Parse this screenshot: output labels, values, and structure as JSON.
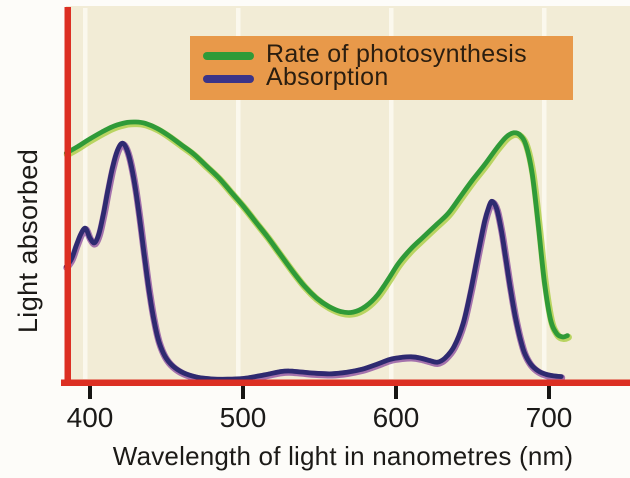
{
  "figure": {
    "x_axis_title": "Wavelength of light in nanometres (nm)",
    "y_axis_title": "Light absorbed"
  },
  "legend": {
    "items": [
      {
        "label": "Rate of photosynthesis",
        "swatch_color": "#2f9a38"
      },
      {
        "label": "Absorption",
        "swatch_color": "#3b3488"
      }
    ]
  },
  "colors": {
    "page_background": "#fdfcf9",
    "plot_background": "#f2ecd6",
    "gridline": "#fcfaf0",
    "axis_red": "#dc2f23",
    "tick_black": "#161513",
    "legend_background": "#e8994a",
    "legend_text": "#2b1e10",
    "green_main": "#2f9a38",
    "green_edge": "#a6cc3a",
    "blue_main": "#2e2a70",
    "blue_edge": "#8a4a9e"
  },
  "chart_data": {
    "type": "line",
    "title": "",
    "xlabel": "Wavelength of light in nanometres (nm)",
    "ylabel": "Light absorbed",
    "x_ticks": [
      400,
      500,
      600,
      700
    ],
    "xlim": [
      384,
      753
    ],
    "ylim": [
      0,
      1.05
    ],
    "grid": "vertical white gridlines at ticks",
    "legend_position": "top-center",
    "y_units": "relative (unlabelled qualitative axis, 0-1)",
    "series": [
      {
        "name": "Rate of photosynthesis",
        "color": "#2f9a38",
        "edge_color": "#a6cc3a",
        "points": [
          [
            384.5,
            0.88
          ],
          [
            392,
            0.905
          ],
          [
            400,
            0.935
          ],
          [
            408,
            0.962
          ],
          [
            416,
            0.985
          ],
          [
            424,
            0.998
          ],
          [
            430,
            1.0
          ],
          [
            436,
            0.995
          ],
          [
            444,
            0.975
          ],
          [
            452,
            0.945
          ],
          [
            460,
            0.91
          ],
          [
            468,
            0.875
          ],
          [
            476,
            0.83
          ],
          [
            484,
            0.785
          ],
          [
            492,
            0.73
          ],
          [
            500,
            0.675
          ],
          [
            508,
            0.615
          ],
          [
            516,
            0.555
          ],
          [
            524,
            0.49
          ],
          [
            532,
            0.425
          ],
          [
            540,
            0.365
          ],
          [
            548,
            0.318
          ],
          [
            556,
            0.285
          ],
          [
            564,
            0.265
          ],
          [
            572,
            0.263
          ],
          [
            580,
            0.285
          ],
          [
            588,
            0.33
          ],
          [
            596,
            0.4
          ],
          [
            602,
            0.455
          ],
          [
            610,
            0.51
          ],
          [
            618,
            0.555
          ],
          [
            626,
            0.6
          ],
          [
            634,
            0.645
          ],
          [
            642,
            0.71
          ],
          [
            650,
            0.775
          ],
          [
            658,
            0.835
          ],
          [
            666,
            0.9
          ],
          [
            672,
            0.942
          ],
          [
            677,
            0.958
          ],
          [
            681,
            0.95
          ],
          [
            685,
            0.91
          ],
          [
            689,
            0.8
          ],
          [
            693,
            0.6
          ],
          [
            697,
            0.38
          ],
          [
            701,
            0.235
          ],
          [
            705,
            0.18
          ],
          [
            709,
            0.167
          ],
          [
            712,
            0.172
          ]
        ]
      },
      {
        "name": "Absorption",
        "color": "#2e2a70",
        "edge_color": "#8a4a9e",
        "points": [
          [
            384.5,
            0.44
          ],
          [
            388,
            0.47
          ],
          [
            391,
            0.52
          ],
          [
            394,
            0.565
          ],
          [
            397,
            0.588
          ],
          [
            400,
            0.55
          ],
          [
            403,
            0.532
          ],
          [
            406,
            0.57
          ],
          [
            409,
            0.65
          ],
          [
            412,
            0.745
          ],
          [
            415,
            0.83
          ],
          [
            418,
            0.89
          ],
          [
            421,
            0.918
          ],
          [
            424,
            0.895
          ],
          [
            427,
            0.83
          ],
          [
            430,
            0.73
          ],
          [
            433,
            0.6
          ],
          [
            436,
            0.46
          ],
          [
            439,
            0.33
          ],
          [
            442,
            0.225
          ],
          [
            445,
            0.15
          ],
          [
            449,
            0.092
          ],
          [
            454,
            0.055
          ],
          [
            461,
            0.028
          ],
          [
            470,
            0.011
          ],
          [
            480,
            0.004
          ],
          [
            490,
            0.003
          ],
          [
            500,
            0.006
          ],
          [
            508,
            0.013
          ],
          [
            516,
            0.022
          ],
          [
            524,
            0.032
          ],
          [
            530,
            0.035
          ],
          [
            538,
            0.031
          ],
          [
            548,
            0.026
          ],
          [
            558,
            0.024
          ],
          [
            568,
            0.03
          ],
          [
            578,
            0.042
          ],
          [
            588,
            0.062
          ],
          [
            596,
            0.08
          ],
          [
            604,
            0.088
          ],
          [
            610,
            0.09
          ],
          [
            616,
            0.085
          ],
          [
            622,
            0.075
          ],
          [
            627,
            0.069
          ],
          [
            632,
            0.085
          ],
          [
            638,
            0.13
          ],
          [
            644,
            0.22
          ],
          [
            649,
            0.35
          ],
          [
            654,
            0.5
          ],
          [
            658,
            0.615
          ],
          [
            661,
            0.675
          ],
          [
            663,
            0.692
          ],
          [
            666,
            0.66
          ],
          [
            669,
            0.575
          ],
          [
            672,
            0.46
          ],
          [
            675,
            0.345
          ],
          [
            678,
            0.245
          ],
          [
            681,
            0.165
          ],
          [
            684,
            0.105
          ],
          [
            688,
            0.062
          ],
          [
            693,
            0.035
          ],
          [
            698,
            0.022
          ],
          [
            703,
            0.016
          ],
          [
            708,
            0.013
          ]
        ]
      }
    ]
  }
}
